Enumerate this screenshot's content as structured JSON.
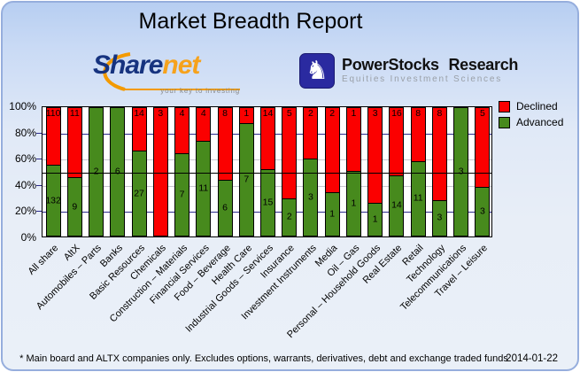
{
  "page": {
    "title": "Market Breadth Report"
  },
  "logos": {
    "sharenet": {
      "brand_primary": "Share",
      "brand_secondary": "net",
      "tagline": "your key to investing",
      "accent_color": "#f39a00",
      "primary_color": "#16337f"
    },
    "powerstocks": {
      "title": "PowerStocks Research",
      "subtitle": "Equities Investment Sciences",
      "icon": "knight-chess-icon",
      "square_color": "#2a2aa0"
    }
  },
  "chart_data": {
    "type": "bar",
    "stacked": true,
    "unit": "percent-of-total",
    "title": "Market Breadth Report",
    "categories": [
      "All share",
      "AltX",
      "Automobiles – Parts",
      "Banks",
      "Basic Resources",
      "Chemicals",
      "Construction – Materials",
      "Financial Services",
      "Food – Beverage",
      "Health Care",
      "Industrial Goods – Services",
      "Insurance",
      "Investment Instruments",
      "Media",
      "Oil – Gas",
      "Personal – Household Goods",
      "Real Estate",
      "Retail",
      "Technology",
      "Telecommunications",
      "Travel – Leisure"
    ],
    "series": [
      {
        "name": "Declined",
        "color": "#fb0000",
        "values": [
          110,
          11,
          0,
          0,
          14,
          3,
          4,
          4,
          8,
          1,
          14,
          5,
          2,
          2,
          1,
          3,
          16,
          8,
          8,
          0,
          5
        ]
      },
      {
        "name": "Advanced",
        "color": "#478a1d",
        "values": [
          132,
          9,
          2,
          6,
          27,
          0,
          7,
          11,
          6,
          7,
          15,
          2,
          3,
          1,
          1,
          1,
          14,
          11,
          3,
          3,
          3
        ]
      }
    ],
    "y_ticks": [
      "100%",
      "80%",
      "60%",
      "40%",
      "20%",
      "0%"
    ],
    "ylim": [
      0,
      100
    ],
    "reference_line_pct": 50,
    "grid": {
      "major_color": "#2b2b8c",
      "minor_color": "#c8c8cf",
      "major_levels": [
        80,
        20
      ],
      "minor_levels": [
        60,
        40
      ]
    },
    "legend_position": "top-right"
  },
  "footer": {
    "note": "* Main board and ALTX companies only. Excludes options, warrants, derivatives, debt and exchange traded funds",
    "date": "2014-01-22"
  }
}
